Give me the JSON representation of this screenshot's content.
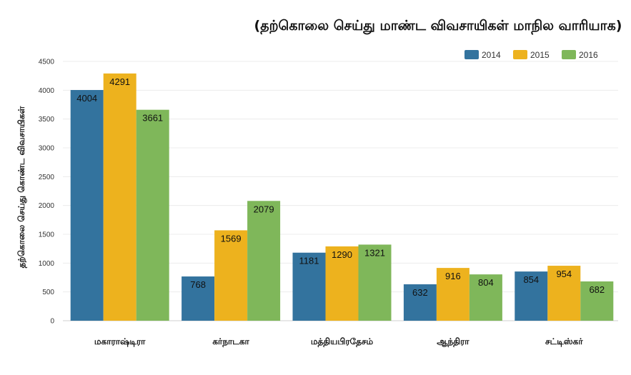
{
  "chart_data": {
    "type": "bar",
    "title": "(தற்கொலை செய்து மாண்ட விவசாயிகள் மாநில வாரியாக)",
    "xlabel": "",
    "ylabel": "தற்கொலை செய்து கொண்ட விவசாயிகள்",
    "categories": [
      "மகாராஷ்டிரா",
      "கர்நாடகா",
      "மத்தியபிரதேசம்",
      "ஆந்திரா",
      "சட்டிஸ்கர்"
    ],
    "series": [
      {
        "name": "2014",
        "color": "#33739e",
        "values": [
          4004,
          768,
          1181,
          632,
          854
        ]
      },
      {
        "name": "2015",
        "color": "#edb21e",
        "values": [
          4291,
          1569,
          1290,
          916,
          954
        ]
      },
      {
        "name": "2016",
        "color": "#7fb75a",
        "values": [
          3661,
          2079,
          1321,
          804,
          682
        ]
      }
    ],
    "ylim": [
      0,
      4500
    ],
    "yticks": [
      0,
      500,
      1000,
      1500,
      2000,
      2500,
      3000,
      3500,
      4000,
      4500
    ],
    "grid": true,
    "legend_position": "top-right"
  }
}
